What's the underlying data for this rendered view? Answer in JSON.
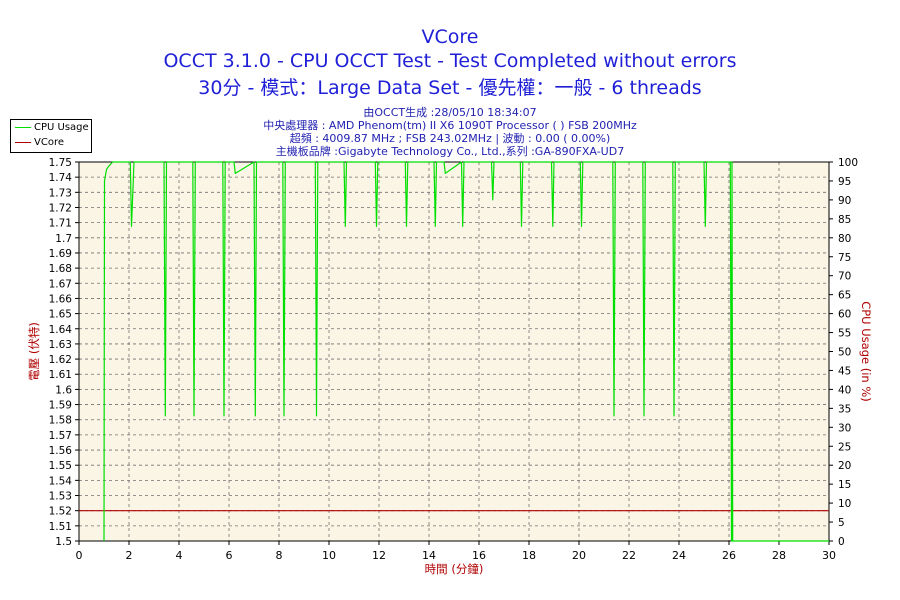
{
  "titles": {
    "main": "VCore",
    "line2": "OCCT 3.1.0 - CPU OCCT Test - Test Completed without errors",
    "line3": "30分 - 模式：Large Data Set - 優先權：一般 - 6 threads"
  },
  "info": {
    "line1": "由OCCT生成 :28/05/10 18:34:07",
    "line2": "中央處理器 : AMD Phenom(tm) II X6 1090T Processor (    ) FSB 200MHz",
    "line3": "超頻 : 4009.87 MHz ; FSB 243.02MHz | 波動 : 0.00 ( 0.00%)",
    "line4": "主機板品牌 :Gigabyte Technology Co., Ltd.,系列 :GA-890FXA-UD7"
  },
  "legend": [
    {
      "label": "CPU Usage",
      "color": "#00e000"
    },
    {
      "label": "VCore",
      "color": "#b00000"
    }
  ],
  "chart_data": {
    "type": "line",
    "xlabel": "時間 (分鐘)",
    "ylabel": "電壓 (伏特)",
    "y2label": "CPU Usage (in %)",
    "xlim": [
      0,
      30
    ],
    "ylim": [
      1.5,
      1.75
    ],
    "y2lim": [
      0,
      100
    ],
    "grid": true,
    "xticks": [
      "0",
      "2",
      "4",
      "6",
      "8",
      "10",
      "12",
      "14",
      "16",
      "18",
      "20",
      "22",
      "24",
      "26",
      "28",
      "30"
    ],
    "yticks": [
      "1.5",
      "1.51",
      "1.52",
      "1.53",
      "1.54",
      "1.55",
      "1.56",
      "1.57",
      "1.58",
      "1.59",
      "1.6",
      "1.61",
      "1.62",
      "1.63",
      "1.64",
      "1.65",
      "1.66",
      "1.67",
      "1.68",
      "1.69",
      "1.7",
      "1.71",
      "1.72",
      "1.73",
      "1.74",
      "1.75"
    ],
    "y2ticks": [
      "0",
      "5",
      "10",
      "15",
      "20",
      "25",
      "30",
      "35",
      "40",
      "45",
      "50",
      "55",
      "60",
      "65",
      "70",
      "75",
      "80",
      "85",
      "90",
      "95",
      "100"
    ],
    "series": [
      {
        "name": "VCore",
        "axis": "left",
        "color": "#b00000",
        "x": [
          0,
          30
        ],
        "values": [
          1.52,
          1.52
        ]
      },
      {
        "name": "CPU Usage",
        "axis": "right",
        "color": "#00e000",
        "x": [
          1.0,
          1.02,
          1.1,
          1.2,
          1.35,
          1.5,
          2.05,
          2.1,
          2.2,
          3.4,
          3.45,
          3.5,
          4.55,
          4.6,
          4.65,
          5.75,
          5.8,
          5.85,
          6.2,
          6.25,
          7.0,
          7.05,
          7.1,
          8.15,
          8.2,
          8.25,
          9.45,
          9.5,
          9.55,
          10.6,
          10.65,
          10.7,
          11.85,
          11.9,
          11.95,
          13.05,
          13.1,
          13.15,
          14.2,
          14.25,
          14.3,
          14.6,
          14.65,
          15.3,
          15.35,
          15.4,
          16.5,
          16.55,
          16.6,
          17.65,
          17.7,
          17.75,
          18.9,
          18.95,
          19.0,
          20.05,
          20.1,
          20.15,
          21.35,
          21.4,
          21.45,
          22.55,
          22.6,
          22.65,
          23.75,
          23.8,
          23.85,
          25.0,
          25.05,
          25.1,
          26.05,
          26.1,
          26.12,
          26.15,
          30
        ],
        "values": [
          0,
          95,
          98,
          99,
          100,
          100,
          100,
          83,
          100,
          100,
          33,
          100,
          100,
          33,
          100,
          100,
          33,
          100,
          100,
          97,
          100,
          33,
          100,
          100,
          33,
          100,
          100,
          33,
          100,
          100,
          83,
          100,
          100,
          83,
          100,
          100,
          83,
          100,
          100,
          83,
          100,
          100,
          97,
          100,
          83,
          100,
          100,
          90,
          100,
          100,
          83,
          100,
          100,
          83,
          100,
          100,
          83,
          100,
          100,
          33,
          100,
          100,
          33,
          100,
          100,
          33,
          100,
          100,
          83,
          100,
          100,
          0,
          100,
          0,
          0
        ]
      }
    ]
  }
}
